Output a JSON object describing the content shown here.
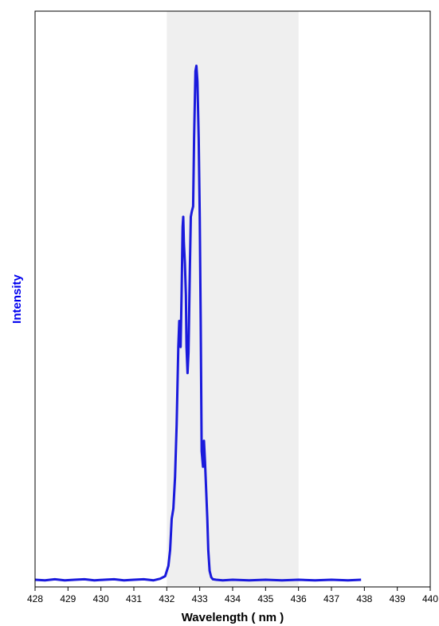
{
  "chart_data": {
    "type": "line",
    "title": "",
    "xlabel": "Wavelength ( nm )",
    "ylabel": "Intensity",
    "xlim": [
      428,
      440
    ],
    "ylim": [
      0,
      1
    ],
    "x_ticks": [
      428,
      429,
      430,
      431,
      432,
      433,
      434,
      435,
      436,
      437,
      438,
      439,
      440
    ],
    "x_tick_labels": [
      "428",
      "429",
      "430",
      "431",
      "432",
      "433",
      "434",
      "435",
      "436",
      "437",
      "438",
      "439",
      "440"
    ],
    "y_tick_labels": [],
    "grid": false,
    "legend": "none",
    "highlight_band": {
      "x_start": 432,
      "x_end": 436,
      "color": "#efefef"
    },
    "colors": {
      "series": "#1a1adc",
      "ylabel": "#0000ee",
      "band": "#efefef",
      "axis": "#000000"
    },
    "series": [
      {
        "x": [
          428.0,
          428.3,
          428.6,
          428.9,
          429.2,
          429.5,
          429.8,
          430.1,
          430.4,
          430.7,
          431.0,
          431.3,
          431.6,
          431.8,
          431.95,
          432.05,
          432.1,
          432.15,
          432.2,
          432.25,
          432.3,
          432.35,
          432.38,
          432.42,
          432.45,
          432.48,
          432.5,
          432.52,
          432.55,
          432.58,
          432.6,
          432.63,
          432.66,
          432.7,
          432.73,
          432.76,
          432.8,
          432.83,
          432.87,
          432.9,
          432.93,
          432.97,
          433.0,
          433.03,
          433.06,
          433.1,
          433.13,
          433.16,
          433.2,
          433.23,
          433.26,
          433.3,
          433.35,
          433.4,
          433.5,
          433.7,
          434.0,
          434.5,
          435.0,
          435.5,
          436.0,
          436.5,
          437.0,
          437.5,
          437.9
        ],
        "y": [
          0.003,
          0.002,
          0.004,
          0.002,
          0.003,
          0.004,
          0.002,
          0.003,
          0.004,
          0.002,
          0.003,
          0.004,
          0.002,
          0.005,
          0.01,
          0.03,
          0.06,
          0.12,
          0.14,
          0.2,
          0.3,
          0.45,
          0.5,
          0.45,
          0.55,
          0.68,
          0.7,
          0.65,
          0.61,
          0.55,
          0.45,
          0.4,
          0.44,
          0.6,
          0.7,
          0.71,
          0.72,
          0.85,
          0.98,
          0.99,
          0.96,
          0.85,
          0.7,
          0.5,
          0.25,
          0.22,
          0.27,
          0.23,
          0.17,
          0.12,
          0.06,
          0.02,
          0.008,
          0.004,
          0.003,
          0.002,
          0.003,
          0.002,
          0.003,
          0.002,
          0.003,
          0.002,
          0.003,
          0.002,
          0.003
        ]
      }
    ]
  }
}
